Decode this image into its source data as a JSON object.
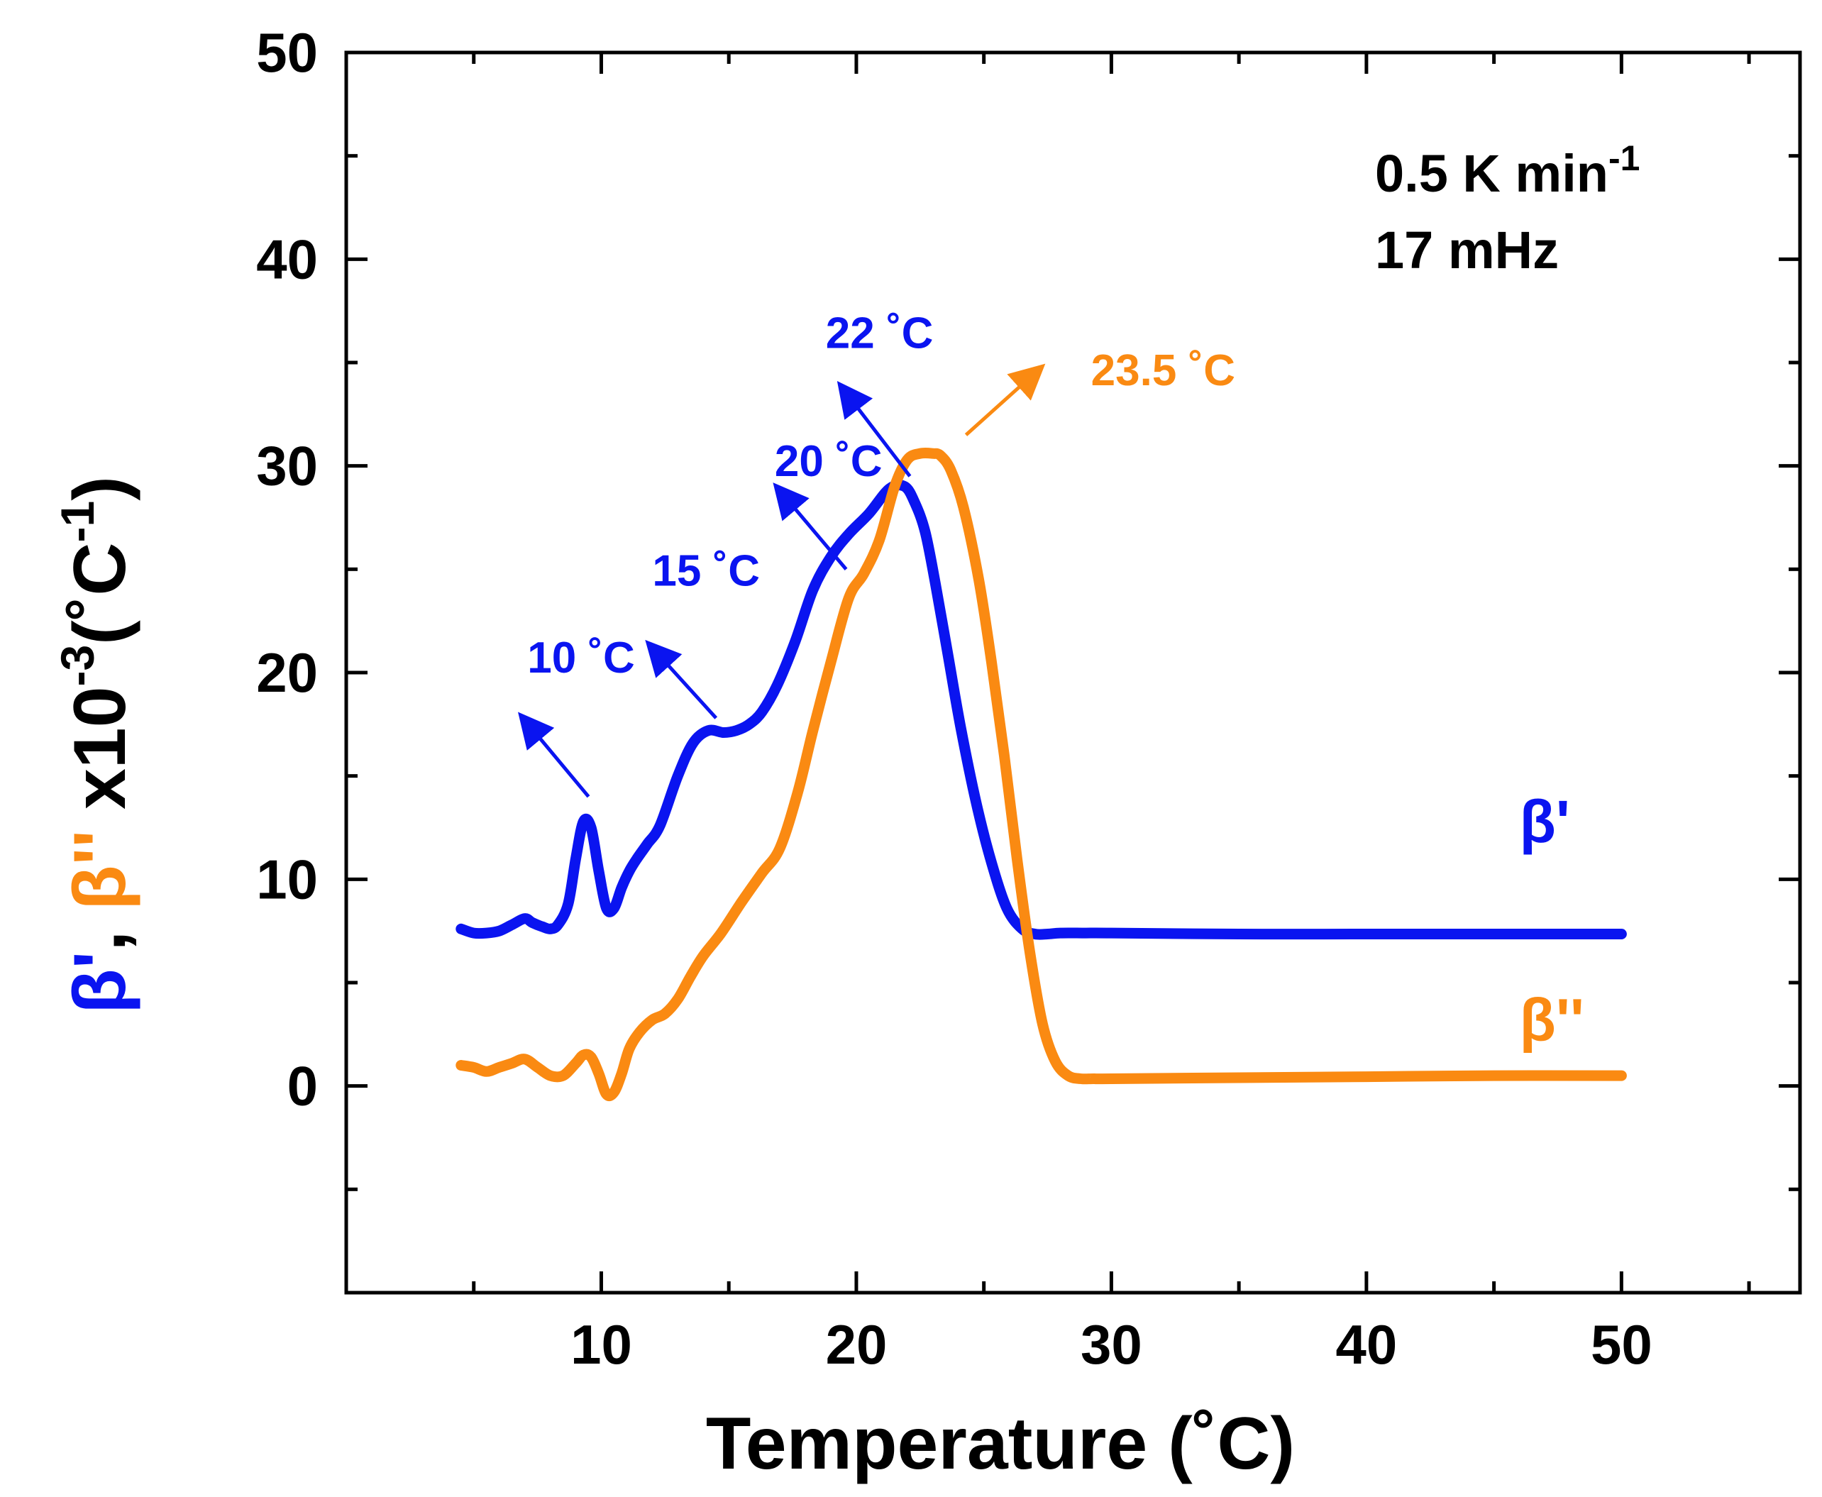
{
  "colors": {
    "beta_prime": "#0a14f0",
    "beta_double_prime": "#fa8a12",
    "axis": "#000000"
  },
  "info": {
    "rate": "0.5 K min",
    "rate_exp": "-1",
    "frequency": "17 mHz"
  },
  "chart_data": {
    "type": "line",
    "title": "",
    "xlabel": "Temperature (˚C)",
    "ylabel_parts": {
      "s1": "β'",
      "s2": ", ",
      "s3": "β''",
      "s4": " x10",
      "s5": "-3",
      "s6": "(˚C",
      "s7": "-1",
      "s8": ")"
    },
    "xlim": [
      0,
      57
    ],
    "ylim": [
      -10,
      50
    ],
    "xticks": [
      10,
      20,
      30,
      40,
      50
    ],
    "xtick_labels": [
      "10",
      "20",
      "30",
      "40",
      "50"
    ],
    "yticks": [
      0,
      10,
      20,
      30,
      40,
      50
    ],
    "ytick_labels": [
      "0",
      "10",
      "20",
      "30",
      "40",
      "50"
    ],
    "grid": false,
    "series": [
      {
        "name": "β'",
        "x": [
          4.5,
          5,
          5.5,
          6,
          6.5,
          7,
          7.3,
          7.7,
          8,
          8.3,
          8.7,
          9,
          9.3,
          9.6,
          9.9,
          10.2,
          10.5,
          10.8,
          11.1,
          11.4,
          11.8,
          12.3,
          13,
          13.6,
          14.2,
          14.8,
          15.3,
          15.8,
          16.3,
          16.9,
          17.6,
          18.3,
          19,
          19.7,
          20.5,
          21.3,
          21.9,
          22.3,
          22.7,
          23.1,
          23.6,
          24.1,
          24.7,
          25.3,
          25.9,
          26.5,
          27,
          27.5,
          28,
          29,
          30,
          35,
          40,
          45,
          50
        ],
        "y": [
          7.6,
          7.4,
          7.4,
          7.5,
          7.8,
          8.1,
          7.9,
          7.7,
          7.6,
          7.8,
          8.8,
          11,
          12.8,
          12.5,
          10.4,
          8.6,
          8.6,
          9.6,
          10.4,
          11,
          11.7,
          12.6,
          15.0,
          16.6,
          17.2,
          17.1,
          17.2,
          17.5,
          18.1,
          19.4,
          21.5,
          24.0,
          25.6,
          26.7,
          27.7,
          28.9,
          29.0,
          28.2,
          26.8,
          24.3,
          20.8,
          17.3,
          13.7,
          10.8,
          8.6,
          7.6,
          7.35,
          7.35,
          7.4,
          7.4,
          7.4,
          7.35,
          7.35,
          7.35,
          7.35
        ],
        "label": "β'"
      },
      {
        "name": "β''",
        "x": [
          4.5,
          5,
          5.5,
          6,
          6.5,
          7,
          7.5,
          8,
          8.5,
          9,
          9.3,
          9.6,
          9.9,
          10.2,
          10.5,
          10.8,
          11.1,
          11.5,
          12,
          12.5,
          13,
          13.5,
          14,
          14.7,
          15.5,
          16.3,
          17,
          17.7,
          18.3,
          19,
          19.7,
          20.3,
          20.9,
          21.5,
          22,
          22.5,
          23,
          23.3,
          23.7,
          24.2,
          24.8,
          25.3,
          25.8,
          26.3,
          26.8,
          27.3,
          27.8,
          28.3,
          28.8,
          29.3,
          30,
          35,
          40,
          45,
          50
        ],
        "y": [
          1.0,
          0.9,
          0.7,
          0.9,
          1.1,
          1.3,
          0.9,
          0.5,
          0.5,
          1.1,
          1.5,
          1.4,
          0.6,
          -0.4,
          -0.3,
          0.6,
          1.8,
          2.6,
          3.2,
          3.5,
          4.2,
          5.3,
          6.3,
          7.4,
          8.9,
          10.3,
          11.5,
          14.2,
          17.2,
          20.5,
          23.6,
          24.8,
          26.4,
          29.0,
          30.3,
          30.6,
          30.6,
          30.5,
          29.8,
          28.0,
          24.5,
          20.5,
          16.0,
          11.0,
          6.5,
          3.0,
          1.2,
          0.5,
          0.35,
          0.35,
          0.35,
          0.4,
          0.45,
          0.5,
          0.5
        ],
        "label": "β''"
      }
    ],
    "annotations": [
      {
        "text": "10 ˚C",
        "color": "beta_prime",
        "arrow_from": [
          9.5,
          14.0
        ],
        "arrow_to": [
          7.0,
          17.7
        ],
        "text_pos": [
          7.1,
          20.0
        ]
      },
      {
        "text": "15 ˚C",
        "color": "beta_prime",
        "arrow_from": [
          14.5,
          17.8
        ],
        "arrow_to": [
          12.0,
          21.2
        ],
        "text_pos": [
          12.0,
          24.2
        ]
      },
      {
        "text": "20 ˚C",
        "color": "beta_prime",
        "arrow_from": [
          19.6,
          25.0
        ],
        "arrow_to": [
          17.0,
          28.8
        ],
        "text_pos": [
          16.8,
          29.5
        ]
      },
      {
        "text": "22 ˚C",
        "color": "beta_prime",
        "arrow_from": [
          22.1,
          29.5
        ],
        "arrow_to": [
          19.5,
          33.7
        ],
        "text_pos": [
          18.8,
          35.7
        ]
      },
      {
        "text": "23.5 ˚C",
        "color": "beta_double_prime",
        "arrow_from": [
          24.3,
          31.5
        ],
        "arrow_to": [
          27.1,
          34.6
        ],
        "text_pos": [
          29.2,
          33.9
        ]
      }
    ],
    "legend": [
      {
        "text": "β'",
        "color": "beta_prime",
        "pos": [
          46.0,
          11.8
        ]
      },
      {
        "text": "β''",
        "color": "beta_double_prime",
        "pos": [
          46.0,
          2.2
        ]
      }
    ]
  }
}
